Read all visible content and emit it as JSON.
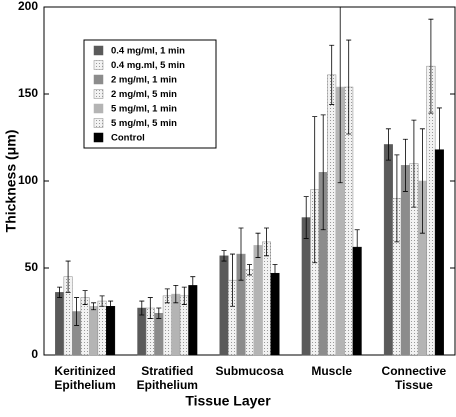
{
  "chart_data": {
    "type": "bar",
    "categories": [
      [
        "Keritinized",
        "Epithelium"
      ],
      [
        "Stratified",
        "Epithelium"
      ],
      [
        "Submucosa"
      ],
      [
        "Muscle"
      ],
      [
        "Connective",
        "Tissue"
      ]
    ],
    "x_label": "Tissue Layer",
    "y_label": "Thickness (μm)",
    "ylim": [
      0,
      200
    ],
    "yticks": [
      0,
      50,
      100,
      150,
      200
    ],
    "legend": "upper left",
    "series": [
      {
        "name": "0.4 mg/ml, 1 min",
        "color": "#5a5a5a",
        "dotted": false,
        "values": [
          36,
          27,
          57,
          79,
          121
        ],
        "errors": [
          3,
          4,
          3,
          12,
          9
        ]
      },
      {
        "name": "0.4 mg.ml, 5 min",
        "color": "#e2e2e2",
        "dotted": true,
        "values": [
          45,
          27,
          43,
          95,
          90
        ],
        "errors": [
          9,
          6,
          15,
          42,
          25
        ]
      },
      {
        "name": "2 mg/ml, 1 min",
        "color": "#8c8c8c",
        "dotted": false,
        "values": [
          25,
          24,
          58,
          105,
          109
        ],
        "errors": [
          8,
          3,
          15,
          33,
          15
        ]
      },
      {
        "name": "2 mg/ml, 5 min",
        "color": "#cfcfcf",
        "dotted": true,
        "values": [
          33,
          34,
          49,
          161,
          110
        ],
        "errors": [
          4,
          4,
          3,
          17,
          25
        ]
      },
      {
        "name": "5 mg/ml, 1 min",
        "color": "#b4b4b4",
        "dotted": false,
        "values": [
          28,
          35,
          63,
          154,
          100
        ],
        "errors": [
          2,
          5,
          7,
          55,
          30
        ]
      },
      {
        "name": "5 mg/ml, 5 min",
        "color": "#d6d6d6",
        "dotted": true,
        "values": [
          31,
          34,
          65,
          154,
          166
        ],
        "errors": [
          3,
          5,
          8,
          27,
          27
        ]
      },
      {
        "name": "Control",
        "color": "#000000",
        "dotted": false,
        "values": [
          28,
          40,
          47,
          62,
          118
        ],
        "errors": [
          3,
          5,
          5,
          10,
          24
        ]
      }
    ]
  }
}
